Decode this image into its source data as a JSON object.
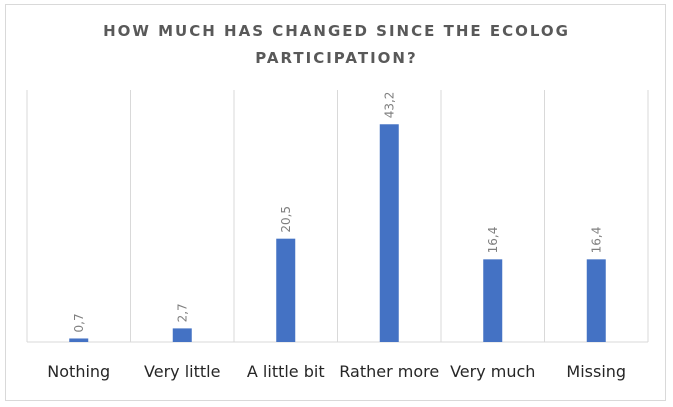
{
  "chart_data": {
    "type": "bar",
    "title_lines": [
      "HOW MUCH HAS CHANGED SINCE THE ECOLOG",
      "PARTICIPATION?"
    ],
    "categories": [
      "Nothing",
      "Very little",
      "A little bit",
      "Rather more",
      "Very much",
      "Missing"
    ],
    "values": [
      0.7,
      2.7,
      20.5,
      43.2,
      16.4,
      16.4
    ],
    "data_labels": [
      "0,7",
      "2,7",
      "20,5",
      "43,2",
      "16,4",
      "16,4"
    ],
    "xlabel": "",
    "ylabel": "",
    "ylim": [
      0,
      50
    ],
    "grid": "vertical",
    "legend": "none",
    "colors": {
      "bar": "#4472C4",
      "grid": "#d9d9d9",
      "axis": "#d9d9d9"
    }
  }
}
